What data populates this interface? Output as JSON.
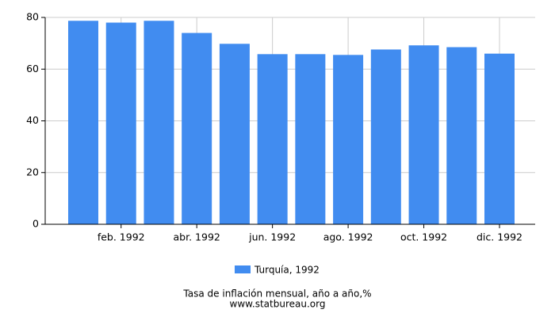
{
  "chart_data": {
    "type": "bar",
    "title": "Tasa de inflación mensual, año a año,%",
    "source": "www.statbureau.org",
    "categories": [
      null,
      "feb. 1992",
      null,
      "abr. 1992",
      null,
      "jun. 1992",
      null,
      "ago. 1992",
      null,
      "oct. 1992",
      null,
      "dic. 1992"
    ],
    "series": [
      {
        "name": "Turquía, 1992",
        "color": "#418cf0",
        "values": [
          78.7,
          78.0,
          78.7,
          74.0,
          69.8,
          65.8,
          65.8,
          65.5,
          67.6,
          69.2,
          68.5,
          66.0
        ]
      }
    ],
    "ylim": [
      0,
      80
    ],
    "yticks": [
      0,
      20,
      40,
      60,
      80
    ],
    "grid": true,
    "legend": "bottom"
  }
}
